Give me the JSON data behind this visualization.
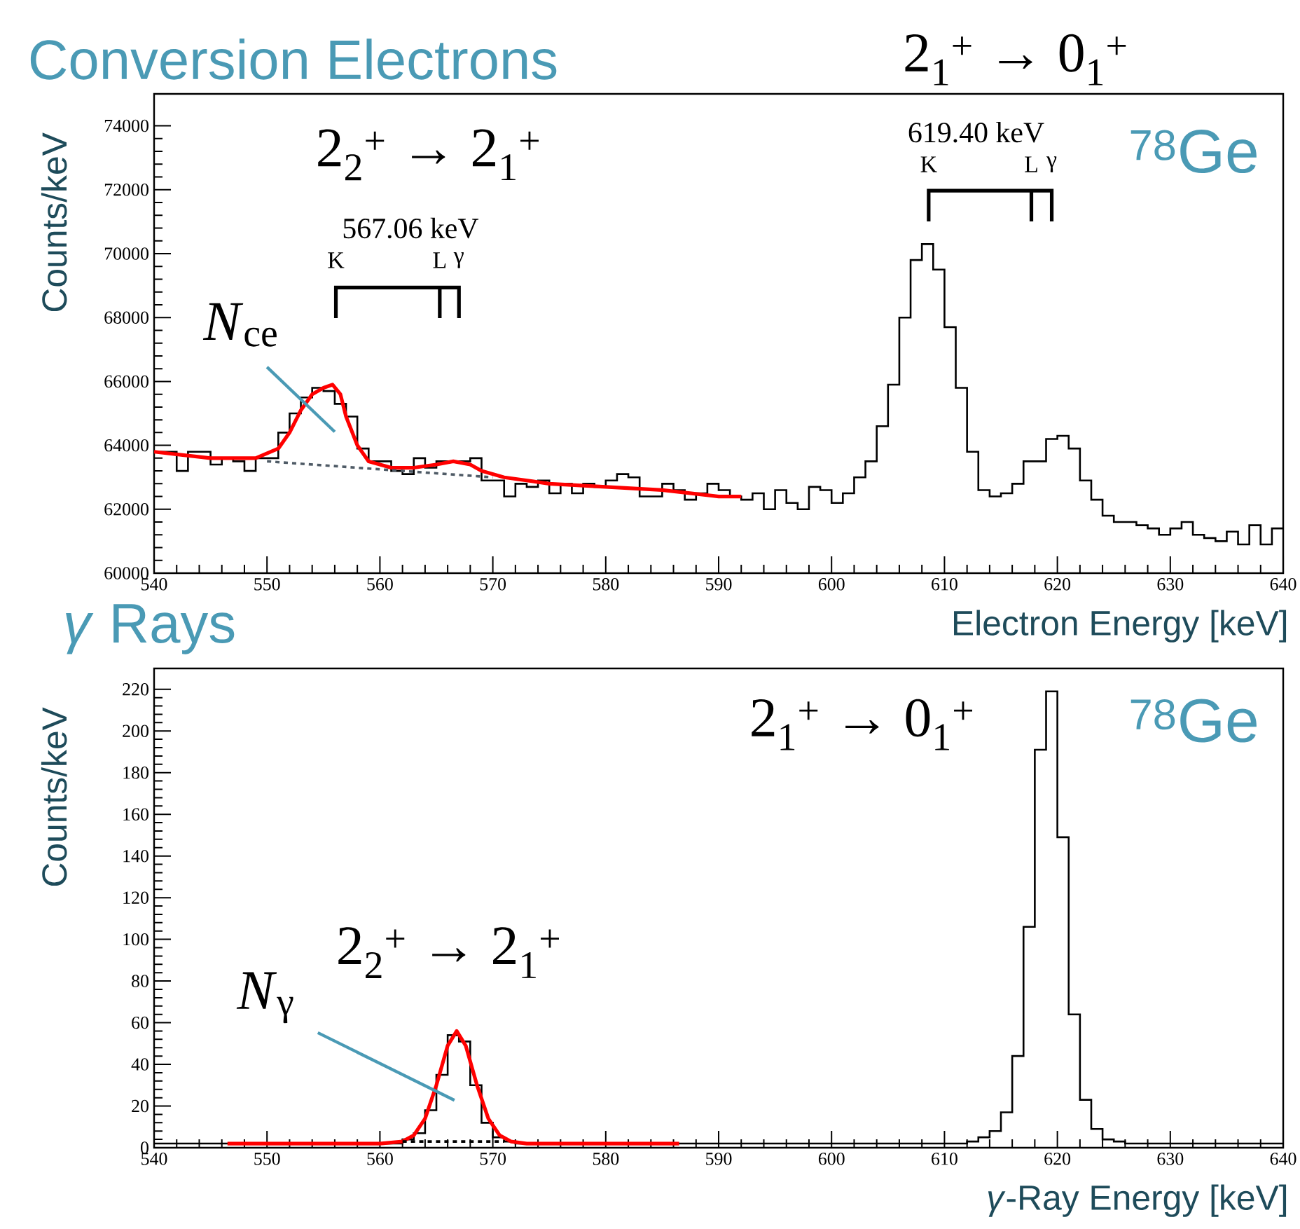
{
  "chart_data": [
    {
      "type": "histogram",
      "title": "Conversion Electrons",
      "xlabel": "Electron Energy [keV]",
      "ylabel": "Counts/keV",
      "color": "#000000",
      "bins": [
        540,
        541,
        542,
        543,
        544,
        545,
        546,
        547,
        548,
        549,
        550,
        551,
        552,
        553,
        554,
        555,
        556,
        557,
        558,
        559,
        560,
        561,
        562,
        563,
        564,
        565,
        566,
        567,
        568,
        569,
        570,
        571,
        572,
        573,
        574,
        575,
        576,
        577,
        578,
        579,
        580,
        581,
        582,
        583,
        584,
        585,
        586,
        587,
        588,
        589,
        590,
        591,
        592,
        593,
        594,
        595,
        596,
        597,
        598,
        599,
        600,
        601,
        602,
        603,
        604,
        605,
        606,
        607,
        608,
        609,
        610,
        611,
        612,
        613,
        614,
        615,
        616,
        617,
        618,
        619,
        620,
        621,
        622,
        623,
        624,
        625,
        626,
        627,
        628,
        629,
        630,
        631,
        632,
        633,
        634,
        635,
        636,
        637,
        638,
        639,
        640
      ],
      "values": [
        63800,
        63800,
        63200,
        63800,
        63800,
        63400,
        63600,
        63500,
        63200,
        63600,
        63600,
        64400,
        65000,
        65500,
        65800,
        65700,
        65300,
        64900,
        63900,
        63500,
        63500,
        63200,
        63100,
        63600,
        63300,
        63500,
        63500,
        63500,
        63600,
        62900,
        62900,
        62400,
        62800,
        62700,
        62900,
        62500,
        62800,
        62500,
        62800,
        62700,
        62900,
        63100,
        63000,
        62400,
        62400,
        62800,
        62600,
        62300,
        62500,
        62800,
        62600,
        62400,
        62300,
        62500,
        62000,
        62600,
        62200,
        62000,
        62700,
        62600,
        62200,
        62500,
        63000,
        63500,
        64600,
        65900,
        68000,
        69800,
        70300,
        69500,
        67700,
        65800,
        63800,
        62600,
        62400,
        62500,
        62800,
        63500,
        63500,
        64200,
        64300,
        63900,
        62900,
        62300,
        61800,
        61600,
        61600,
        61500,
        61400,
        61200,
        61400,
        61600,
        61200,
        61100,
        61000,
        61300,
        60900,
        61500,
        60900,
        61400
      ],
      "series": [
        {
          "type": "line",
          "color": "#ff0000",
          "x": [
            540,
            545,
            549,
            551,
            552,
            553,
            554,
            555,
            555.8,
            556.5,
            557,
            558,
            559,
            560,
            561,
            563,
            565,
            566.5,
            568,
            569,
            571,
            575,
            580,
            585,
            590,
            592
          ],
          "values": [
            63800,
            63600,
            63600,
            63900,
            64400,
            65100,
            65600,
            65800,
            65900,
            65600,
            64900,
            64000,
            63500,
            63400,
            63300,
            63300,
            63400,
            63500,
            63400,
            63200,
            63000,
            62800,
            62700,
            62600,
            62400,
            62400
          ]
        },
        {
          "type": "line",
          "color": "#4f5b66",
          "line_style": "dashed",
          "x": [
            550,
            570
          ],
          "values": [
            63500,
            63000
          ]
        }
      ],
      "xlim": [
        540,
        640
      ],
      "ylim": [
        60000,
        75000
      ],
      "xticks": [
        540,
        550,
        560,
        570,
        580,
        590,
        600,
        610,
        620,
        630,
        640
      ],
      "yticks": [
        60000,
        62000,
        64000,
        66000,
        68000,
        70000,
        72000,
        74000
      ],
      "annotations": [
        "2$_{2}$$^{+}$ → 2$_{1}$$^{+}$",
        "567.06 keV",
        "K",
        "L",
        "γ",
        "619.40 keV",
        "K",
        "L",
        "γ",
        "*N*$_{ce}$",
        "$^{78}$Ge",
        "2$_{1}$$^{+}$ → 0$_{1}$$^{+}$"
      ]
    },
    {
      "type": "histogram",
      "title": "*γ* Rays",
      "xlabel": "*γ*-Ray Energy [keV]",
      "ylabel": "Counts/keV",
      "color": "#000000",
      "bins": [
        540,
        541,
        542,
        543,
        544,
        545,
        546,
        547,
        548,
        549,
        550,
        551,
        552,
        553,
        554,
        555,
        556,
        557,
        558,
        559,
        560,
        561,
        562,
        563,
        564,
        565,
        566,
        567,
        568,
        569,
        570,
        571,
        572,
        573,
        574,
        575,
        576,
        577,
        578,
        579,
        580,
        581,
        582,
        583,
        584,
        585,
        586,
        587,
        588,
        589,
        590,
        591,
        592,
        593,
        594,
        595,
        596,
        597,
        598,
        599,
        600,
        601,
        602,
        603,
        604,
        605,
        606,
        607,
        608,
        609,
        610,
        611,
        612,
        613,
        614,
        615,
        616,
        617,
        618,
        619,
        620,
        621,
        622,
        623,
        624,
        625,
        626,
        627,
        628,
        629,
        630,
        631,
        632,
        633,
        634,
        635,
        636,
        637,
        638,
        639,
        640
      ],
      "values": [
        2,
        2,
        2,
        2,
        2,
        2,
        2,
        2,
        2,
        2,
        2,
        2,
        2,
        2,
        2,
        2,
        2,
        2,
        2,
        2,
        2,
        2,
        4,
        7,
        18,
        35,
        54,
        51,
        30,
        12,
        5,
        3,
        2,
        2,
        2,
        2,
        2,
        2,
        2,
        2,
        2,
        2,
        2,
        2,
        2,
        2,
        2,
        2,
        2,
        2,
        2,
        2,
        2,
        2,
        2,
        2,
        2,
        2,
        2,
        2,
        2,
        2,
        2,
        2,
        2,
        2,
        2,
        2,
        2,
        2,
        2,
        2,
        3,
        5,
        8,
        17,
        44,
        106,
        191,
        219,
        149,
        64,
        23,
        9,
        4,
        3,
        2,
        2,
        2,
        2,
        2,
        2,
        2,
        2,
        2,
        2,
        2,
        2,
        2,
        2
      ],
      "series": [
        {
          "type": "line",
          "color": "#ff0000",
          "x": [
            546.5,
            560,
            562,
            563,
            564,
            565,
            566,
            566.8,
            567.6,
            568.6,
            569.6,
            570.6,
            571.6,
            573,
            586.5
          ],
          "values": [
            2,
            2,
            3,
            6,
            14,
            30,
            49,
            56,
            49,
            30,
            14,
            6,
            3,
            2,
            2
          ]
        },
        {
          "type": "line",
          "color": "#000000",
          "line_style": "dashed",
          "x": [
            562,
            571
          ],
          "values": [
            3,
            3
          ]
        }
      ],
      "xlim": [
        540,
        640
      ],
      "ylim": [
        0,
        230
      ],
      "xticks": [
        540,
        550,
        560,
        570,
        580,
        590,
        600,
        610,
        620,
        630,
        640
      ],
      "yticks": [
        0,
        20,
        40,
        60,
        80,
        100,
        120,
        140,
        160,
        180,
        200,
        220
      ],
      "annotations": [
        "2$_{2}$$^{+}$ → 2$_{1}$$^{+}$",
        "*N*$_{γ}$",
        "2$_{1}$$^{+}$ → 0$_{1}$$^{+}$",
        "$^{78}$Ge"
      ]
    }
  ]
}
